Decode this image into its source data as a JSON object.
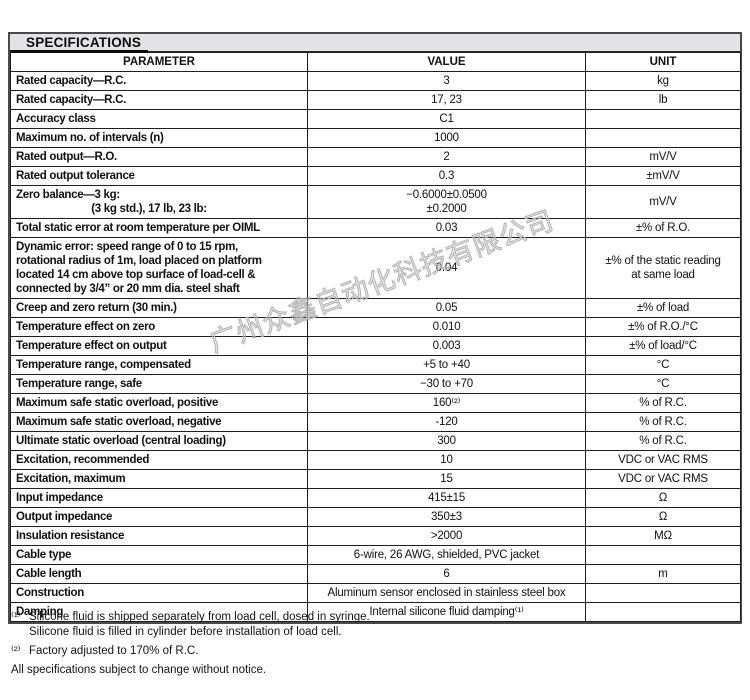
{
  "title": "SPECIFICATIONS",
  "colors": {
    "title_bar_bg": "#e3e3e5",
    "table_border": "#1f1f1f",
    "outer_border": "#4a4a4a",
    "watermark_gray": "#b3b3b3",
    "text": "#111111"
  },
  "watermark_text": "广州众鑫自动化科技有限公司",
  "table": {
    "columns": [
      "PARAMETER",
      "VALUE",
      "UNIT"
    ],
    "rows": [
      {
        "param": "Rated capacity—R.C.",
        "value": "3",
        "unit": "kg"
      },
      {
        "param": "Rated capacity—R.C.",
        "value": "17, 23",
        "unit": "lb"
      },
      {
        "param": "Accuracy class",
        "value": "C1",
        "unit": ""
      },
      {
        "param": "Maximum no. of intervals (n)",
        "value": "1000",
        "unit": ""
      },
      {
        "param": "Rated output—R.O.",
        "value": "2",
        "unit": "mV/V"
      },
      {
        "param": "Rated output tolerance",
        "value": "0.3",
        "unit": "±mV/V"
      },
      {
        "param": "Zero balance—3 kg:\n                          (3 kg std.), 17 lb, 23 lb:",
        "value": "−0.6000±0.0500\n±0.2000",
        "unit": "mV/V"
      },
      {
        "param": "Total static error at room temperature per OIML",
        "value": "0.03",
        "unit": "±% of R.O."
      },
      {
        "param": "Dynamic error: speed range of 0 to 15 rpm,\nrotational radius of 1m, load placed on platform\nlocated 14 cm above top surface of load-cell &\nconnected by 3/4” or 20 mm dia. steel shaft",
        "value": "0.04",
        "unit": "±% of the static reading\nat same load"
      },
      {
        "param": "Creep and zero return (30 min.)",
        "value": "0.05",
        "unit": "±% of load"
      },
      {
        "param": "Temperature effect on zero",
        "value": "0.010",
        "unit": "±% of R.O./°C"
      },
      {
        "param": "Temperature effect on output",
        "value": "0.003",
        "unit": "±% of load/°C"
      },
      {
        "param": "Temperature range, compensated",
        "value": "+5 to +40",
        "unit": "°C"
      },
      {
        "param": "Temperature range, safe",
        "value": "−30 to +70",
        "unit": "°C"
      },
      {
        "param": "Maximum safe static overload, positive",
        "value": "160⁽²⁾",
        "unit": "% of R.C."
      },
      {
        "param": "Maximum safe static overload, negative",
        "value": "-120",
        "unit": "% of R.C."
      },
      {
        "param": "Ultimate static overload (central loading)",
        "value": "300",
        "unit": "% of R.C."
      },
      {
        "param": "Excitation, recommended",
        "value": "10",
        "unit": "VDC or VAC RMS"
      },
      {
        "param": "Excitation, maximum",
        "value": "15",
        "unit": "VDC or VAC RMS"
      },
      {
        "param": "Input impedance",
        "value": "415±15",
        "unit": "Ω"
      },
      {
        "param": "Output impedance",
        "value": "350±3",
        "unit": "Ω"
      },
      {
        "param": "Insulation resistance",
        "value": ">2000",
        "unit": "MΩ"
      },
      {
        "param": "Cable type",
        "value": "6-wire, 26 AWG, shielded, PVC jacket",
        "unit": ""
      },
      {
        "param": "Cable length",
        "value": "6",
        "unit": "m"
      },
      {
        "param": "Construction",
        "value": "Aluminum sensor enclosed in stainless steel box",
        "unit": ""
      },
      {
        "param": "Damping",
        "value": "Internal silicone fluid damping⁽¹⁾",
        "unit": ""
      }
    ]
  },
  "footnotes": [
    {
      "marker": "⁽¹⁾",
      "text": "Silicone fluid is shipped separately from load cell, dosed in syringe.\nSilicone fluid is filled in cylinder before installation of load cell."
    },
    {
      "marker": "⁽²⁾",
      "text": "Factory adjusted to 170% of R.C."
    }
  ],
  "disclaimer": "All specifications subject to change without notice."
}
